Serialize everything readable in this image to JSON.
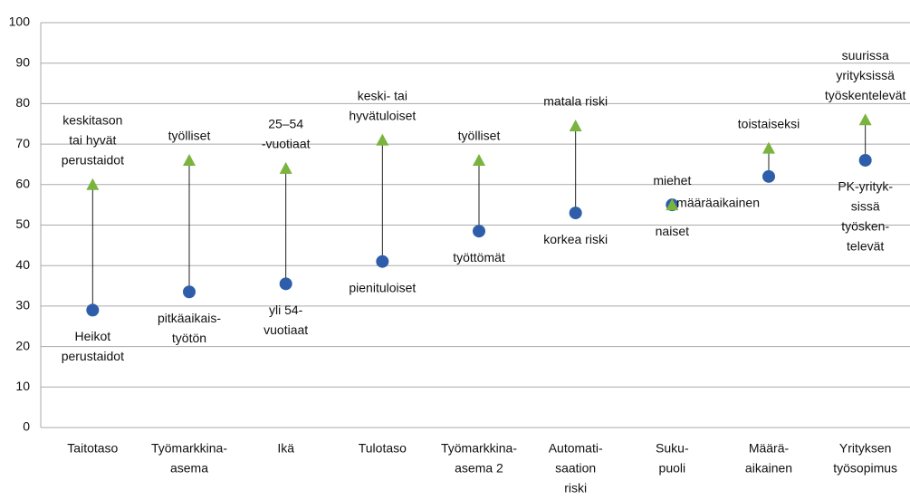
{
  "chart_data": {
    "type": "dot-range",
    "categories": [
      [
        "Taitotaso"
      ],
      [
        "Työmarkkina-",
        "asema"
      ],
      [
        "Ikä"
      ],
      [
        "Tulotaso"
      ],
      [
        "Työmarkkina-",
        "asema 2"
      ],
      [
        "Automati-",
        "saation",
        "riski"
      ],
      [
        "Suku-",
        "puoli"
      ],
      [
        "Määrä-",
        "aikainen"
      ],
      [
        "Yrityksen",
        "työsopimus"
      ]
    ],
    "series": [
      {
        "color": "#2e5eaa",
        "marker": "circle",
        "values": [
          29,
          33.5,
          35.5,
          41,
          48.5,
          53,
          55,
          62,
          66
        ],
        "point_labels": [
          [
            "Heikot",
            "perustaidot"
          ],
          [
            "pitkäaikais-",
            "työtön"
          ],
          [
            "yli 54-",
            "vuotiaat"
          ],
          [
            "pienituloiset"
          ],
          [
            "työttömät"
          ],
          [
            "korkea riski"
          ],
          [
            "naiset"
          ],
          [
            "määräaikainen"
          ],
          [
            "PK-yrityk-",
            "sissä",
            "työsken-",
            "televät"
          ]
        ]
      },
      {
        "color": "#7ab33e",
        "marker": "triangle",
        "values": [
          60,
          66,
          64,
          71,
          66,
          74.5,
          55,
          69,
          76
        ],
        "point_labels": [
          [
            "keskitason",
            "tai hyvät",
            "perustaidot"
          ],
          [
            "työlliset"
          ],
          [
            "25–54",
            "-vuotiaat"
          ],
          [
            "keski- tai",
            "hyvätuloiset"
          ],
          [
            "työlliset"
          ],
          [
            "matala riski"
          ],
          [
            "miehet"
          ],
          [
            "toistaiseksi"
          ],
          [
            "suurissa",
            "yrityksissä",
            "työskentelevät"
          ]
        ]
      }
    ],
    "ylim": [
      0,
      100
    ],
    "yticks": [
      0,
      10,
      20,
      30,
      40,
      50,
      60,
      70,
      80,
      90,
      100
    ],
    "grid": true
  }
}
